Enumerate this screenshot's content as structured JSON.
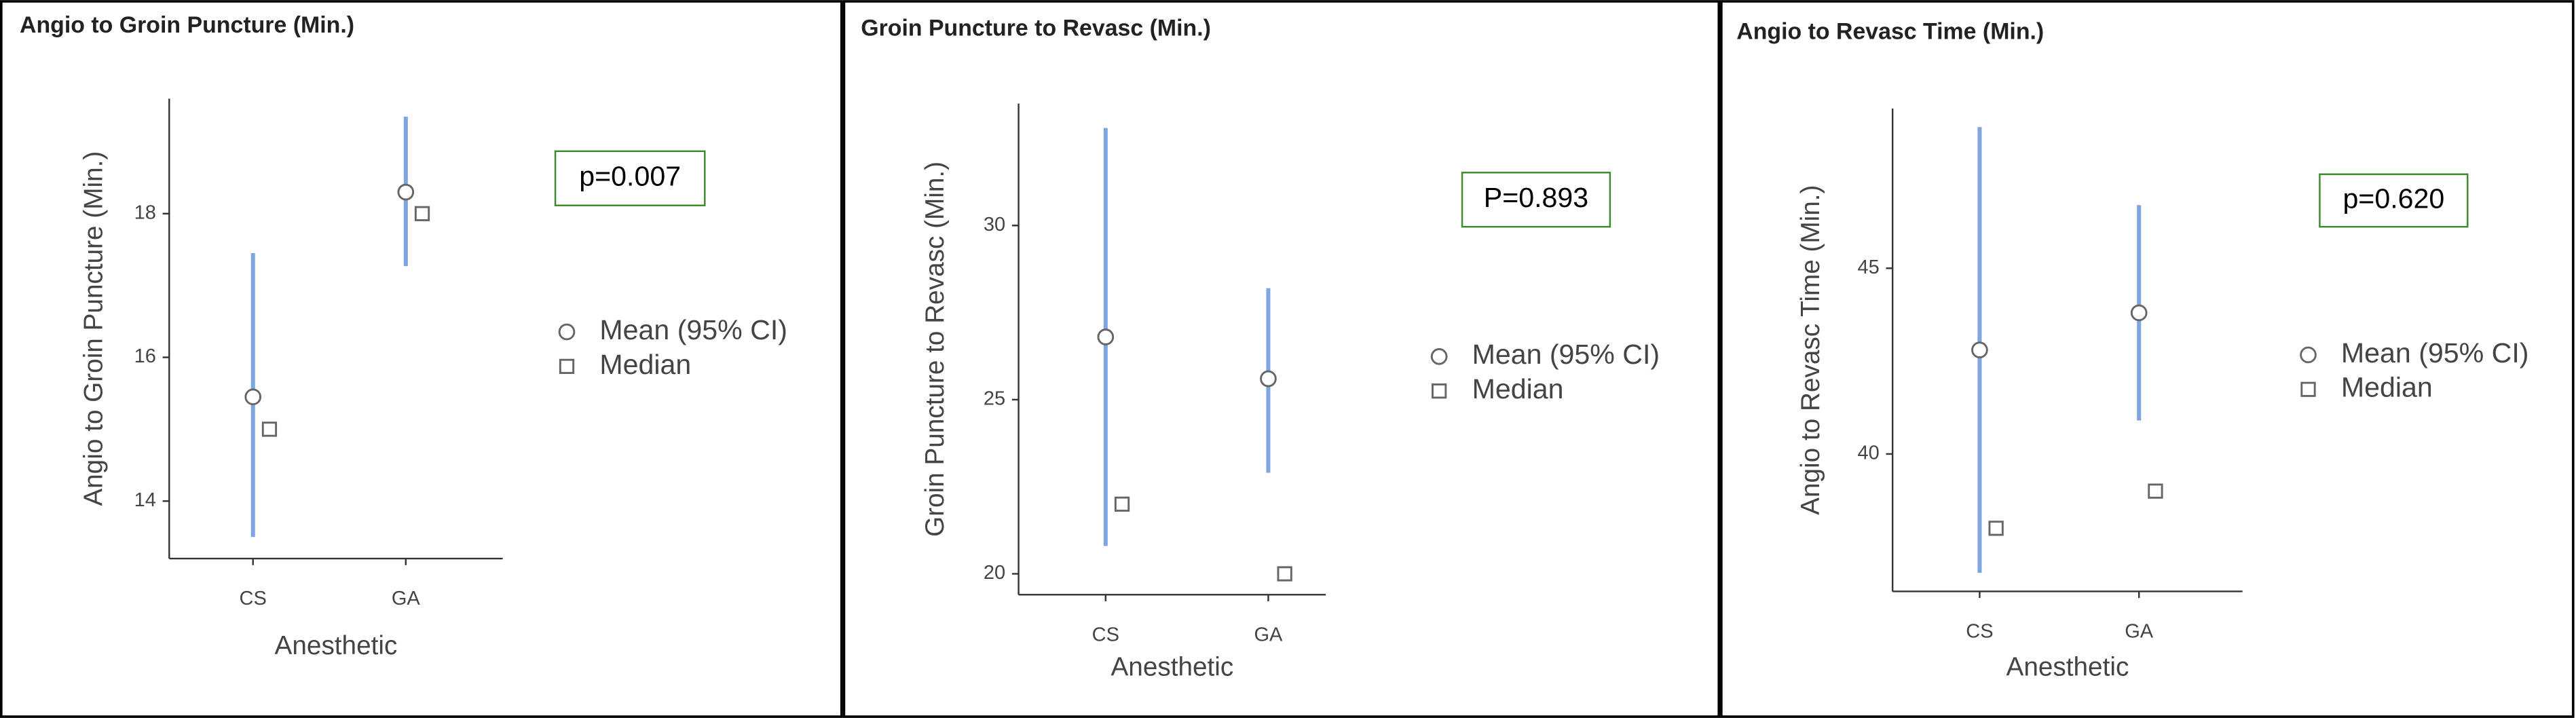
{
  "chart_data": [
    {
      "type": "errorpoint",
      "title": "Angio to Groin Puncture (Min.)",
      "y_label": "Angio to Groin Puncture (Min.)",
      "x_label": "Anesthetic",
      "categories": [
        "CS",
        "GA"
      ],
      "series": [
        {
          "name": "Mean (95% CI)",
          "color": "#7ea6e0",
          "values": [
            15.45,
            18.3
          ],
          "ci_low": [
            13.5,
            17.27
          ],
          "ci_high": [
            17.45,
            19.35
          ]
        },
        {
          "name": "Median",
          "color": "#666666",
          "values": [
            15,
            18
          ]
        }
      ],
      "ylim": [
        13.2,
        19.6
      ],
      "yticks": [
        14,
        16,
        18
      ],
      "annotation": "p=0.007"
    },
    {
      "type": "errorpoint",
      "title": "Groin Puncture to Revasc (Min.)",
      "y_label": "Groin Puncture to Revasc (Min.)",
      "x_label": "Anesthetic",
      "categories": [
        "CS",
        "GA"
      ],
      "series": [
        {
          "name": "Mean (95% CI)",
          "color": "#7ea6e0",
          "values": [
            26.8,
            25.6
          ],
          "ci_low": [
            20.8,
            22.9
          ],
          "ci_high": [
            32.8,
            28.2
          ]
        },
        {
          "name": "Median",
          "color": "#666666",
          "values": [
            22,
            20
          ]
        }
      ],
      "ylim": [
        19.4,
        33.5
      ],
      "yticks": [
        20,
        25,
        30
      ],
      "annotation": "P=0.893"
    },
    {
      "type": "errorpoint",
      "title": "Angio to Revasc Time (Min.)",
      "y_label": "Angio to Revasc Time (Min.)",
      "x_label": "Anesthetic",
      "categories": [
        "CS",
        "GA"
      ],
      "series": [
        {
          "name": "Mean (95% CI)",
          "color": "#7ea6e0",
          "values": [
            42.8,
            43.8
          ],
          "ci_low": [
            36.8,
            40.9
          ],
          "ci_high": [
            48.8,
            46.7
          ]
        },
        {
          "name": "Median",
          "color": "#666666",
          "values": [
            38,
            39
          ]
        }
      ],
      "ylim": [
        36.3,
        49.3
      ],
      "yticks": [
        40,
        45
      ],
      "annotation": "p=0.620"
    }
  ]
}
